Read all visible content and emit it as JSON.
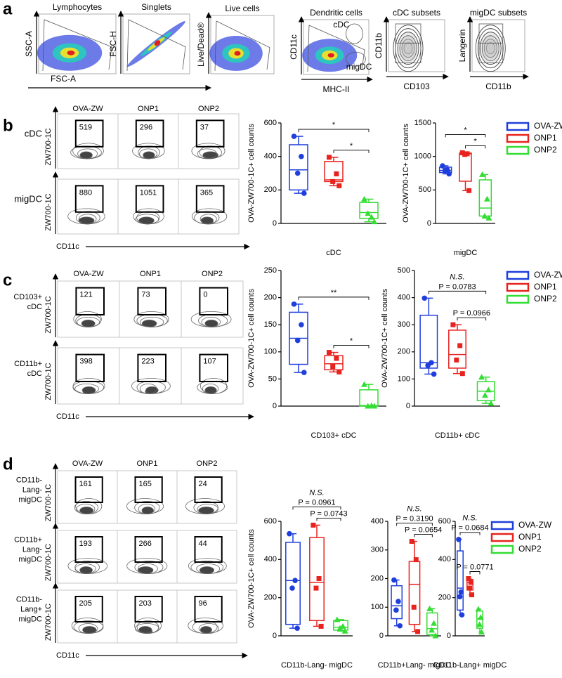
{
  "panel_a": {
    "label": "a",
    "plots": [
      {
        "title": "Lymphocytes",
        "xlabel": "FSC-A",
        "ylabel": "SSC-A"
      },
      {
        "title": "Singlets",
        "ylabel": "FSC-H"
      },
      {
        "title": "Live cells",
        "ylabel": "Live/Dead®"
      },
      {
        "title": "Dendritic cells",
        "xlabel": "MHC-II",
        "ylabel": "CD11c",
        "gates": [
          "cDC",
          "migDC"
        ]
      },
      {
        "title": "cDC subsets",
        "xlabel": "CD103",
        "ylabel": "CD11b"
      },
      {
        "title": "migDC subsets",
        "xlabel": "CD11b",
        "ylabel": "Langerin"
      }
    ]
  },
  "panel_b": {
    "label": "b",
    "columns": [
      "OVA-ZW",
      "ONP1",
      "ONP2"
    ],
    "ylabel": "ZW700-1C",
    "xlabel": "CD11c",
    "rows": [
      {
        "label": [
          "cDC"
        ],
        "counts": [
          519,
          296,
          37
        ]
      },
      {
        "label": [
          "migDC"
        ],
        "counts": [
          880,
          1051,
          365
        ]
      }
    ]
  },
  "panel_c": {
    "label": "c",
    "columns": [
      "OVA-ZW",
      "ONP1",
      "ONP2"
    ],
    "ylabel": "ZW700-1C",
    "xlabel": "CD11c",
    "rows": [
      {
        "label": [
          "CD103+",
          "cDC"
        ],
        "counts": [
          121,
          73,
          0
        ]
      },
      {
        "label": [
          "CD11b+",
          "cDC"
        ],
        "counts": [
          398,
          223,
          107
        ]
      }
    ]
  },
  "panel_d": {
    "label": "d",
    "columns": [
      "OVA-ZW",
      "ONP1",
      "ONP2"
    ],
    "ylabel": "ZW700-1C",
    "xlabel": "CD11c",
    "rows": [
      {
        "label": [
          "CD11b-",
          "Lang-",
          "migDC"
        ],
        "counts": [
          161,
          165,
          24
        ]
      },
      {
        "label": [
          "CD11b+",
          "Lang-",
          "migDC"
        ],
        "counts": [
          193,
          266,
          44
        ]
      },
      {
        "label": [
          "CD11b-",
          "Lang+",
          "migDC"
        ],
        "counts": [
          205,
          203,
          96
        ]
      }
    ]
  },
  "chart_data": [
    {
      "type": "box",
      "xlabel": "cDC",
      "ylabel": "OVA-ZW700-1C+ cell counts",
      "ylim": [
        0,
        600
      ],
      "yticks": [
        0,
        200,
        400,
        600
      ],
      "annotations": [
        "*",
        "*"
      ],
      "series": [
        {
          "name": "OVA-ZW",
          "color": "#1f3fdc",
          "marker": "circle",
          "min": 180,
          "q1": 200,
          "median": 320,
          "q3": 470,
          "max": 520,
          "points": [
            520,
            400,
            300,
            180
          ]
        },
        {
          "name": "ONP1",
          "color": "#e8231f",
          "marker": "square",
          "min": 225,
          "q1": 250,
          "median": 260,
          "q3": 370,
          "max": 395,
          "points": [
            395,
            296,
            250,
            225
          ]
        },
        {
          "name": "ONP2",
          "color": "#33dd33",
          "marker": "triangle",
          "min": 10,
          "q1": 30,
          "median": 65,
          "q3": 125,
          "max": 145,
          "points": [
            145,
            37,
            60,
            10
          ]
        }
      ]
    },
    {
      "type": "box",
      "xlabel": "migDC",
      "ylabel": "OVA-ZW700-1C+ cell counts",
      "ylim": [
        0,
        1500
      ],
      "yticks": [
        0,
        500,
        1000,
        1500
      ],
      "annotations": [
        "*",
        "*"
      ],
      "series": [
        {
          "name": "OVA-ZW",
          "color": "#1f3fdc",
          "marker": "circle",
          "min": 740,
          "q1": 760,
          "median": 790,
          "q3": 840,
          "max": 860,
          "points": [
            860,
            800,
            790,
            740
          ]
        },
        {
          "name": "ONP1",
          "color": "#e8231f",
          "marker": "square",
          "min": 490,
          "q1": 630,
          "median": 1040,
          "q3": 1050,
          "max": 1055,
          "points": [
            1055,
            1040,
            1030,
            490
          ]
        },
        {
          "name": "ONP2",
          "color": "#33dd33",
          "marker": "triangle",
          "min": 80,
          "q1": 110,
          "median": 230,
          "q3": 650,
          "max": 730,
          "points": [
            730,
            365,
            110,
            80
          ]
        }
      ]
    },
    {
      "type": "box",
      "xlabel": "CD103+ cDC",
      "ylabel": "OVA-ZW700-1C+ cell counts",
      "ylim": [
        0,
        250
      ],
      "yticks": [
        0,
        50,
        100,
        150,
        200,
        250
      ],
      "annotations": [
        "**",
        "*"
      ],
      "series": [
        {
          "name": "OVA-ZW",
          "color": "#1f3fdc",
          "marker": "circle",
          "min": 62,
          "q1": 77,
          "median": 125,
          "q3": 173,
          "max": 188,
          "points": [
            188,
            150,
            121,
            62
          ]
        },
        {
          "name": "ONP1",
          "color": "#e8231f",
          "marker": "square",
          "min": 63,
          "q1": 67,
          "median": 78,
          "q3": 93,
          "max": 99,
          "points": [
            99,
            88,
            73,
            63
          ]
        },
        {
          "name": "ONP2",
          "color": "#33dd33",
          "marker": "triangle",
          "min": 0,
          "q1": 0,
          "median": 1,
          "q3": 30,
          "max": 40,
          "points": [
            40,
            1,
            0,
            0
          ]
        }
      ]
    },
    {
      "type": "box",
      "xlabel": "CD11b+ cDC",
      "ylabel": "OVA-ZW700-1C+ cell counts",
      "ylim": [
        0,
        500
      ],
      "yticks": [
        0,
        100,
        200,
        300,
        400,
        500
      ],
      "note": "N.S.",
      "annotations": [
        "P = 0.0783",
        "P = 0.0966"
      ],
      "series": [
        {
          "name": "OVA-ZW",
          "color": "#1f3fdc",
          "marker": "circle",
          "min": 118,
          "q1": 140,
          "median": 160,
          "q3": 335,
          "max": 398,
          "points": [
            398,
            160,
            150,
            118
          ]
        },
        {
          "name": "ONP1",
          "color": "#e8231f",
          "marker": "square",
          "min": 120,
          "q1": 140,
          "median": 190,
          "q3": 280,
          "max": 300,
          "points": [
            300,
            223,
            170,
            120
          ]
        },
        {
          "name": "ONP2",
          "color": "#33dd33",
          "marker": "triangle",
          "min": 10,
          "q1": 20,
          "median": 55,
          "q3": 90,
          "max": 107,
          "points": [
            107,
            60,
            40,
            10
          ]
        }
      ]
    },
    {
      "type": "box",
      "xlabel": "CD11b-Lang- migDC",
      "ylabel": "OVA-ZW700-1C+ cell counts",
      "ylim": [
        0,
        600
      ],
      "yticks": [
        0,
        200,
        400,
        600
      ],
      "note": "N.S.",
      "annotations": [
        "P = 0.0961",
        "P = 0.0743"
      ],
      "series": [
        {
          "name": "OVA-ZW",
          "color": "#1f3fdc",
          "marker": "circle",
          "min": 40,
          "q1": 60,
          "median": 290,
          "q3": 490,
          "max": 535,
          "points": [
            535,
            290,
            250,
            40
          ]
        },
        {
          "name": "ONP1",
          "color": "#e8231f",
          "marker": "square",
          "min": 50,
          "q1": 80,
          "median": 280,
          "q3": 515,
          "max": 580,
          "points": [
            580,
            300,
            250,
            50
          ]
        },
        {
          "name": "ONP2",
          "color": "#33dd33",
          "marker": "triangle",
          "min": 25,
          "q1": 30,
          "median": 45,
          "q3": 80,
          "max": 85,
          "points": [
            85,
            50,
            40,
            25
          ]
        }
      ]
    },
    {
      "type": "box",
      "xlabel": "CD11b+Lang- migDC",
      "ylim": [
        0,
        400
      ],
      "yticks": [
        0,
        100,
        200,
        300,
        400
      ],
      "note": "N.S.",
      "annotations": [
        "P = 0.3190",
        "P = 0.0654"
      ],
      "series": [
        {
          "name": "OVA-ZW",
          "color": "#1f3fdc",
          "marker": "circle",
          "min": 35,
          "q1": 60,
          "median": 105,
          "q3": 175,
          "max": 195,
          "points": [
            195,
            120,
            90,
            35
          ]
        },
        {
          "name": "ONP1",
          "color": "#e8231f",
          "marker": "square",
          "min": 15,
          "q1": 40,
          "median": 180,
          "q3": 260,
          "max": 330,
          "points": [
            330,
            266,
            100,
            15
          ]
        },
        {
          "name": "ONP2",
          "color": "#33dd33",
          "marker": "triangle",
          "min": 0,
          "q1": 5,
          "median": 25,
          "q3": 80,
          "max": 95,
          "points": [
            95,
            44,
            20,
            0
          ]
        }
      ]
    },
    {
      "type": "box",
      "xlabel": "CD11b-Lang+ migDC",
      "ylim": [
        0,
        600
      ],
      "yticks": [
        0,
        200,
        400,
        600
      ],
      "note": "N.S.",
      "annotations": [
        "P = 0.0684",
        "P = 0.0771"
      ],
      "series": [
        {
          "name": "OVA-ZW",
          "color": "#1f3fdc",
          "marker": "circle",
          "min": 110,
          "q1": 135,
          "median": 250,
          "q3": 445,
          "max": 505,
          "points": [
            505,
            230,
            205,
            110
          ]
        },
        {
          "name": "ONP1",
          "color": "#e8231f",
          "marker": "square",
          "min": 215,
          "q1": 240,
          "median": 280,
          "q3": 295,
          "max": 300,
          "points": [
            300,
            280,
            250,
            215
          ]
        },
        {
          "name": "ONP2",
          "color": "#33dd33",
          "marker": "triangle",
          "min": 20,
          "q1": 40,
          "median": 90,
          "q3": 130,
          "max": 140,
          "points": [
            140,
            96,
            60,
            20
          ]
        }
      ]
    }
  ]
}
